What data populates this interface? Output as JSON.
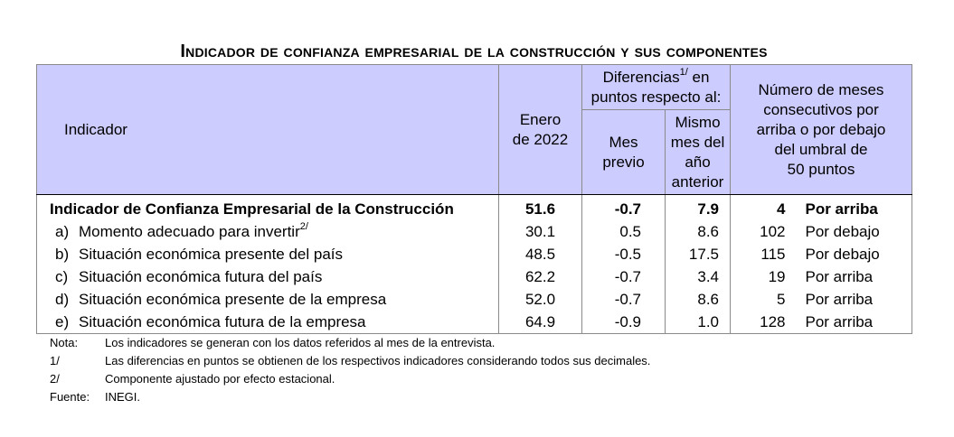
{
  "title": "Indicador de confianza empresarial de la construcción y sus componentes",
  "header": {
    "indicador": "Indicador",
    "enero_line1": "Enero",
    "enero_line2": "de 2022",
    "diferencias_text": "Diferencias",
    "diferencias_sup": "1/",
    "diferencias_rest1": " en",
    "diferencias_line2": "puntos respecto al:",
    "mes_previo_1": "Mes",
    "mes_previo_2": "previo",
    "mismo_1": "Mismo",
    "mismo_2": "mes del",
    "mismo_3": "año",
    "mismo_4": "anterior",
    "numero_1": "Número de meses",
    "numero_2": "consecutivos por",
    "numero_3": "arriba o por debajo",
    "numero_4": "del umbral de",
    "numero_5": "50 puntos"
  },
  "rows": [
    {
      "letter": "",
      "name": "Indicador de Confianza Empresarial de la Construcción",
      "sup": "",
      "enero": "51.6",
      "mes_previo": "-0.7",
      "anual": "7.9",
      "meses": "4",
      "direccion": "Por arriba"
    },
    {
      "letter": "a)",
      "name": "Momento adecuado para invertir",
      "sup": "2/",
      "enero": "30.1",
      "mes_previo": "0.5",
      "anual": "8.6",
      "meses": "102",
      "direccion": "Por debajo"
    },
    {
      "letter": "b)",
      "name": "Situación económica presente del país",
      "sup": "",
      "enero": "48.5",
      "mes_previo": "-0.5",
      "anual": "17.5",
      "meses": "115",
      "direccion": "Por debajo"
    },
    {
      "letter": "c)",
      "name": "Situación económica futura del país",
      "sup": "",
      "enero": "62.2",
      "mes_previo": "-0.7",
      "anual": "3.4",
      "meses": "19",
      "direccion": "Por arriba"
    },
    {
      "letter": "d)",
      "name": "Situación económica presente de la empresa",
      "sup": "",
      "enero": "52.0",
      "mes_previo": "-0.7",
      "anual": "8.6",
      "meses": "5",
      "direccion": "Por arriba"
    },
    {
      "letter": "e)",
      "name": "Situación económica futura de la empresa",
      "sup": "",
      "enero": "64.9",
      "mes_previo": "-0.9",
      "anual": "1.0",
      "meses": "128",
      "direccion": "Por arriba"
    }
  ],
  "notes": [
    {
      "key": "Nota:",
      "text": "Los indicadores se generan con los datos referidos al mes de la entrevista."
    },
    {
      "key": "1/",
      "text": "Las diferencias en puntos se obtienen de los respectivos indicadores considerando todos sus decimales."
    },
    {
      "key": "2/",
      "text": "Componente ajustado por efecto estacional."
    },
    {
      "key": "Fuente:",
      "text": "INEGI."
    }
  ],
  "colors": {
    "header_bg": "#ccccff",
    "border": "#8a8a8a"
  }
}
